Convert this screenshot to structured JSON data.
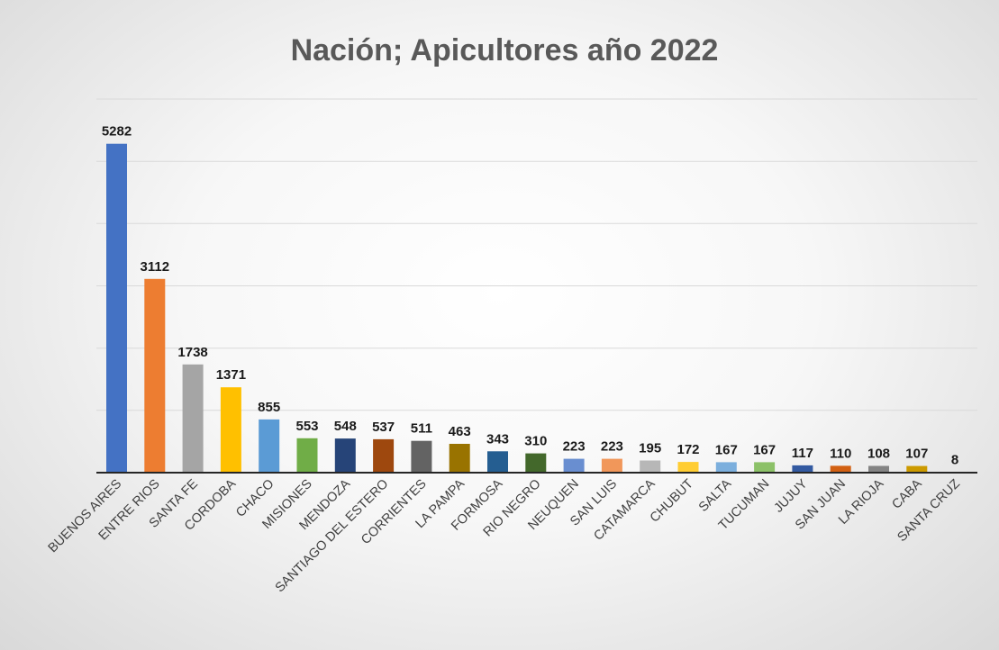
{
  "chart_data": {
    "type": "bar",
    "title": "Nación; Apicultores año 2022",
    "xlabel": "",
    "ylabel": "",
    "ylim": [
      0,
      6000
    ],
    "grid": true,
    "legend": "none",
    "categories": [
      "BUENOS AIRES",
      "ENTRE RIOS",
      "SANTA FE",
      "CORDOBA",
      "CHACO",
      "MISIONES",
      "MENDOZA",
      "SANTIAGO DEL ESTERO",
      "CORRIENTES",
      "LA PAMPA",
      "FORMOSA",
      "RIO NEGRO",
      "NEUQUEN",
      "SAN LUIS",
      "CATAMARCA",
      "CHUBUT",
      "SALTA",
      "TUCUMAN",
      "JUJUY",
      "SAN JUAN",
      "LA RIOJA",
      "CABA",
      "SANTA CRUZ"
    ],
    "values": [
      5282,
      3112,
      1738,
      1371,
      855,
      553,
      548,
      537,
      511,
      463,
      343,
      310,
      223,
      223,
      195,
      172,
      167,
      167,
      117,
      110,
      108,
      107,
      8
    ],
    "colors": [
      "#4472c4",
      "#ed7d31",
      "#a5a5a5",
      "#ffc000",
      "#5b9bd5",
      "#70ad47",
      "#264478",
      "#9e480e",
      "#636363",
      "#997300",
      "#255e91",
      "#43682b",
      "#698ed0",
      "#f1975a",
      "#b7b7b7",
      "#ffcd33",
      "#7cafdd",
      "#8cc168",
      "#335aa1",
      "#d26012",
      "#848484",
      "#cc9a00",
      "#4472c4"
    ]
  }
}
